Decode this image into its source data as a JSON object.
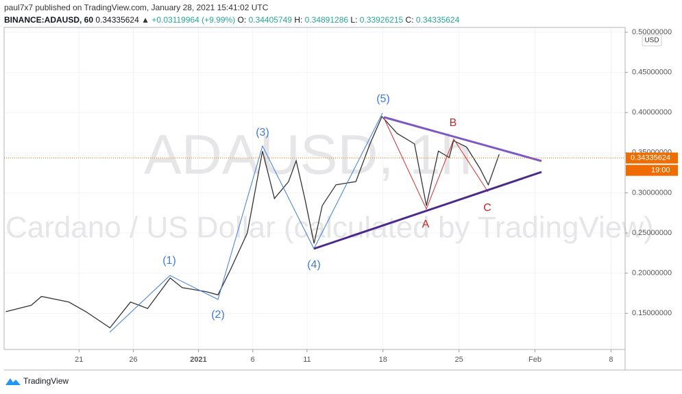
{
  "header": {
    "published": "paul7x7 published on TradingView.com, January 28, 2021 15:41:02 UTC",
    "symbol": "BINANCE:ADAUSD, 60",
    "last": "0.34335624",
    "change": "+0.03119964 (+9.99%)",
    "ohlc": [
      {
        "key": "O:",
        "value": "0.34405749"
      },
      {
        "key": "H:",
        "value": "0.34891286"
      },
      {
        "key": "L:",
        "value": "0.33926215"
      },
      {
        "key": "C:",
        "value": "0.34335624"
      }
    ]
  },
  "chart_data": {
    "type": "line",
    "watermark_symbol": "ADAUSD, 1h",
    "watermark_desc": "Cardano / US Dollar (calculated by TradingView)",
    "currency": "USD",
    "x": [
      14.26,
      16.6,
      17.54,
      20.06,
      21.64,
      23.85,
      25.74,
      27.32,
      29.4,
      30.5,
      32.7,
      33.8,
      34.9,
      36.5,
      37.9,
      39.0,
      40.3,
      41.0,
      41.8,
      42.65,
      43.4,
      44.67,
      46.5,
      47.8,
      48.9,
      50.3,
      51.9,
      53.0,
      54.1,
      55.1,
      55.5,
      56.7,
      57.9,
      58.7,
      59.7
    ],
    "values": [
      0.152,
      0.16,
      0.171,
      0.164,
      0.152,
      0.132,
      0.164,
      0.156,
      0.194,
      0.182,
      0.177,
      0.173,
      0.203,
      0.25,
      0.352,
      0.293,
      0.314,
      0.34,
      0.293,
      0.237,
      0.284,
      0.31,
      0.314,
      0.361,
      0.395,
      0.374,
      0.361,
      0.284,
      0.352,
      0.344,
      0.365,
      0.357,
      0.331,
      0.31,
      0.348
    ],
    "color": "#333333",
    "last_price": 0.34335624,
    "countdown": "19:00",
    "waves": [
      "(1)",
      "(2)",
      "(3)",
      "(4)",
      "(5)",
      "A",
      "B",
      "C"
    ],
    "xlim": [
      14.1,
      71.3
    ],
    "ylim": [
      0.105,
      0.506
    ],
    "xticks": [
      21,
      26,
      {
        "value": 32,
        "label": "2021"
      },
      {
        "value": 37,
        "label": "6"
      },
      {
        "value": 42,
        "label": "11"
      },
      {
        "value": 49,
        "label": "18"
      },
      {
        "value": 56,
        "label": "25"
      },
      {
        "value": 63,
        "label": "Feb"
      },
      {
        "value": 70,
        "label": "8"
      }
    ],
    "yticks": [
      {
        "value": 0.15,
        "label": "0.15000000"
      },
      {
        "value": 0.2,
        "label": "0.20000000"
      },
      {
        "value": 0.25,
        "label": "0.25000000"
      },
      {
        "value": 0.3,
        "label": "0.30000000"
      },
      {
        "value": 0.35,
        "label": "0.35000000"
      },
      {
        "value": 0.4,
        "label": "0.40000000"
      },
      {
        "value": 0.45,
        "label": "0.45000000"
      },
      {
        "value": 0.5,
        "label": "0.50000000"
      }
    ],
    "grid": true
  },
  "footer": {
    "brand": "TradingView"
  }
}
